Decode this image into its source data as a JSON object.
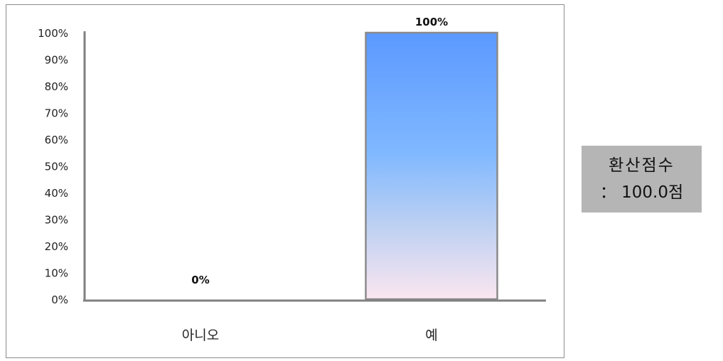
{
  "chart_data": {
    "type": "bar",
    "categories": [
      "아니오",
      "예"
    ],
    "values": [
      0,
      100
    ],
    "data_labels": [
      "0%",
      "100%"
    ],
    "yticks": [
      "0%",
      "10%",
      "20%",
      "30%",
      "40%",
      "50%",
      "60%",
      "70%",
      "80%",
      "90%",
      "100%"
    ],
    "ylim": [
      0,
      100
    ],
    "grid": false,
    "legend": "none",
    "bar_color_top": "#5b99ff",
    "bar_color_bottom": "#fbe6f0"
  },
  "score_box": {
    "title": "환산점수",
    "value": "： 100.0점"
  }
}
